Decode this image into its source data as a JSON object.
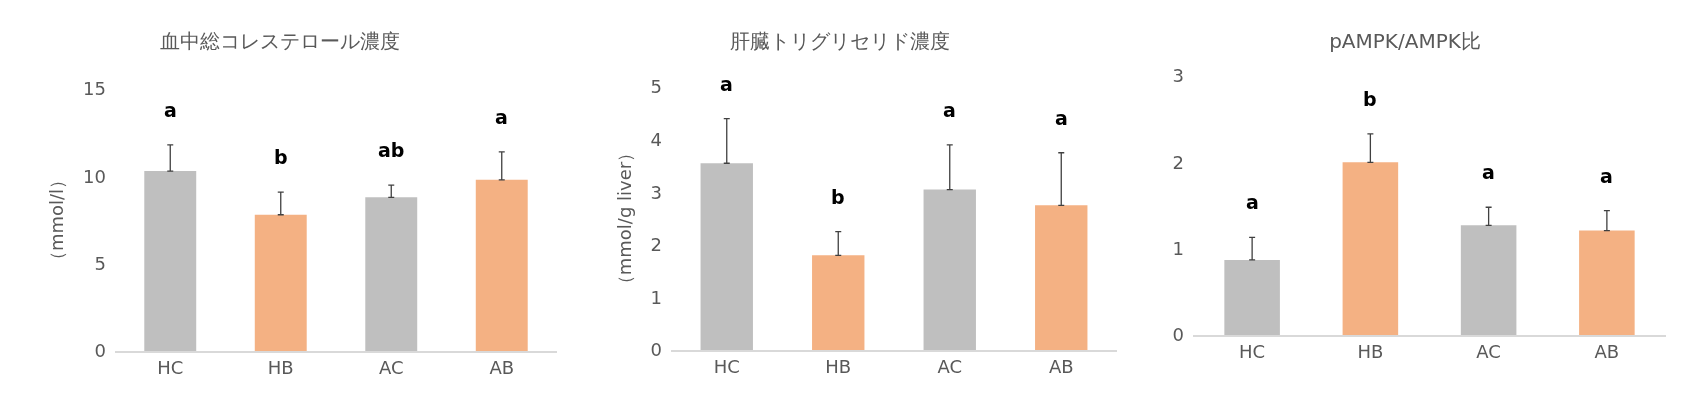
{
  "chart_data": [
    {
      "type": "bar",
      "title": "血中総コレステロール濃度",
      "ylabel": "（mmol/l）",
      "categories": [
        "HC",
        "HB",
        "AC",
        "AB"
      ],
      "values": [
        10.3,
        7.8,
        8.8,
        9.8
      ],
      "colors": [
        "#bfbfbf",
        "#f4b183",
        "#bfbfbf",
        "#f4b183"
      ],
      "errors": [
        [
          10.3,
          11.8
        ],
        [
          7.8,
          9.1
        ],
        [
          8.8,
          9.5
        ],
        [
          9.8,
          11.4
        ]
      ],
      "ylim": [
        0,
        15
      ],
      "yticks": [
        0,
        5,
        10,
        15
      ],
      "grid": false,
      "annotations": [
        "a",
        "b",
        "ab",
        "a"
      ]
    },
    {
      "type": "bar",
      "title": "肝臓トリグリセリド濃度",
      "ylabel": "（mmol/g liver）",
      "categories": [
        "HC",
        "HB",
        "AC",
        "AB"
      ],
      "values": [
        3.55,
        1.8,
        3.05,
        2.75
      ],
      "colors": [
        "#bfbfbf",
        "#f4b183",
        "#bfbfbf",
        "#f4b183"
      ],
      "errors": [
        [
          3.55,
          4.4
        ],
        [
          1.8,
          2.25
        ],
        [
          3.05,
          3.9
        ],
        [
          2.75,
          3.75
        ]
      ],
      "ylim": [
        0,
        5
      ],
      "yticks": [
        0,
        1,
        2,
        3,
        4,
        5
      ],
      "grid": false,
      "annotations": [
        "a",
        "b",
        "a",
        "a"
      ]
    },
    {
      "type": "bar",
      "title": "pAMPK/AMPK比",
      "categories": [
        "HC",
        "HB",
        "AC",
        "AB"
      ],
      "values": [
        0.87,
        2.0,
        1.27,
        1.21
      ],
      "colors": [
        "#bfbfbf",
        "#f4b183",
        "#bfbfbf",
        "#f4b183"
      ],
      "errors": [
        [
          0.87,
          1.13
        ],
        [
          2.0,
          2.33
        ],
        [
          1.27,
          1.48
        ],
        [
          1.21,
          1.44
        ]
      ],
      "ylim": [
        0,
        3
      ],
      "yticks": [
        0,
        1,
        2,
        3
      ],
      "grid": false,
      "annotations": [
        "a",
        "b",
        "a",
        "a"
      ]
    }
  ]
}
